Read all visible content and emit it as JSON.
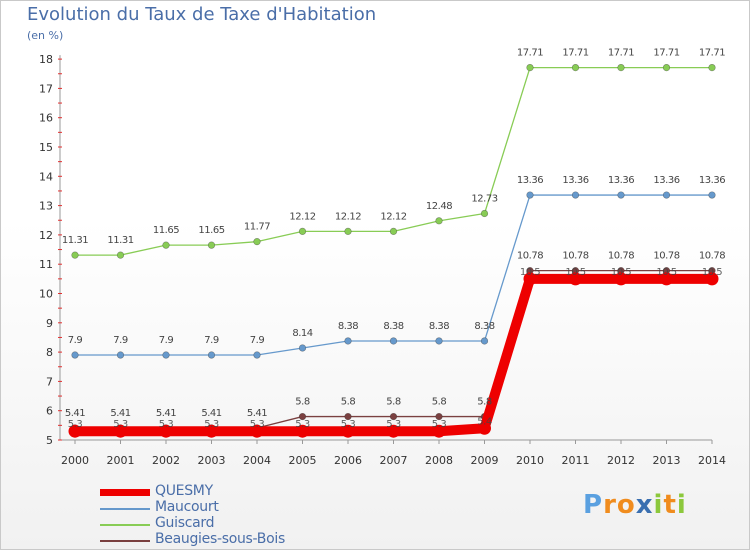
{
  "title": "Evolution du Taux de Taxe d'Habitation",
  "subtitle": "(en %)",
  "chart_data": {
    "type": "line",
    "x": [
      2000,
      2001,
      2002,
      2003,
      2004,
      2005,
      2006,
      2007,
      2008,
      2009,
      2010,
      2011,
      2012,
      2013,
      2014
    ],
    "ylim": [
      5,
      18
    ],
    "yticks": [
      5,
      6,
      7,
      8,
      9,
      10,
      11,
      12,
      13,
      14,
      15,
      16,
      17,
      18
    ],
    "grid": false,
    "legend_position": "bottom",
    "series": [
      {
        "name": "Beaugies-sous-Bois",
        "color": "#7a4040",
        "values": [
          5.41,
          5.41,
          5.41,
          5.41,
          5.41,
          5.8,
          5.8,
          5.8,
          5.8,
          5.8,
          10.78,
          10.78,
          10.78,
          10.78,
          10.78
        ]
      },
      {
        "name": "Guiscard",
        "color": "#88cc55",
        "values": [
          11.31,
          11.31,
          11.65,
          11.65,
          11.77,
          12.12,
          12.12,
          12.12,
          12.48,
          12.73,
          17.71,
          17.71,
          17.71,
          17.71,
          17.71
        ]
      },
      {
        "name": "Maucourt",
        "color": "#6699cc",
        "values": [
          7.9,
          7.9,
          7.9,
          7.9,
          7.9,
          8.14,
          8.38,
          8.38,
          8.38,
          8.38,
          13.36,
          13.36,
          13.36,
          13.36,
          13.36
        ]
      },
      {
        "name": "QUESMY",
        "color": "#ee0000",
        "values": [
          5.3,
          5.3,
          5.3,
          5.3,
          5.3,
          5.3,
          5.3,
          5.3,
          5.3,
          5.4,
          10.5,
          10.5,
          10.5,
          10.5,
          10.5
        ]
      }
    ],
    "data_labels": {
      "QUESMY": [
        "5.3",
        "5.3",
        "5.3",
        "5.3",
        "5.3",
        "5.3",
        "5.3",
        "5.3",
        "5.3",
        "5.4",
        "10.5",
        "10.5",
        "10.5",
        "10.5",
        "10.5"
      ]
    }
  },
  "legend": [
    {
      "label": "QUESMY",
      "color": "#ee0000"
    },
    {
      "label": "Maucourt",
      "color": "#6699cc"
    },
    {
      "label": "Guiscard",
      "color": "#88cc55"
    },
    {
      "label": "Beaugies-sous-Bois",
      "color": "#7a4040"
    }
  ],
  "logo": {
    "letters": [
      "P",
      "r",
      "o",
      "x",
      "i",
      "t",
      "i"
    ],
    "colors": [
      "#5aa0e0",
      "#f08c1e",
      "#f08c1e",
      "#3a6fb0",
      "#8cc83c",
      "#f08c1e",
      "#8cc83c"
    ]
  }
}
